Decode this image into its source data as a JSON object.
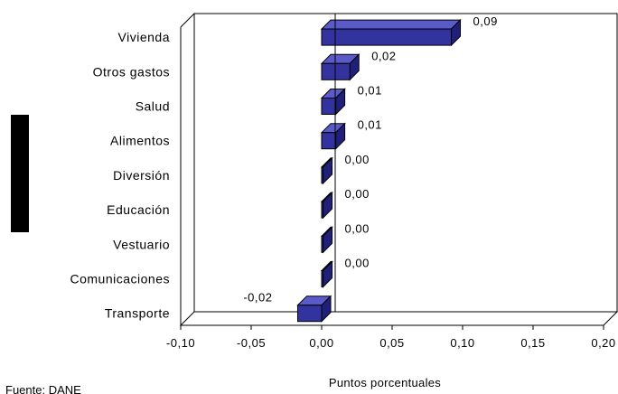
{
  "chart_data": {
    "type": "bar",
    "orientation": "horizontal",
    "categories": [
      "Vivienda",
      "Otros gastos",
      "Salud",
      "Alimentos",
      "Diversión",
      "Educación",
      "Vestuario",
      "Comunicaciones",
      "Transporte"
    ],
    "values": [
      0.092,
      0.02,
      0.01,
      0.01,
      0.001,
      0.001,
      0.001,
      0.001,
      -0.017
    ],
    "data_labels": [
      "0,09",
      "0,02",
      "0,01",
      "0,01",
      "0,00",
      "0,00",
      "0,00",
      "0,00",
      "-0,02"
    ],
    "xlabel": "Puntos porcentuales",
    "xlim": [
      -0.1,
      0.2
    ],
    "x_ticks": [
      "-0,10",
      "-0,05",
      "0,00",
      "0,05",
      "0,10",
      "0,15",
      "0,20"
    ],
    "grid": false,
    "bar_color": "#3333a0",
    "bar_side_color": "#20207a",
    "bar_top_color": "#5a5ac8",
    "style": "3d"
  },
  "source_note": "Fuente: DANE"
}
